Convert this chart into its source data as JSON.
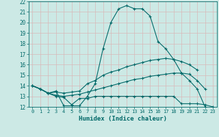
{
  "xlabel": "Humidex (Indice chaleur)",
  "background_color": "#cce9e5",
  "grid_color": "#b0d4d0",
  "line_color": "#006868",
  "xlim": [
    -0.5,
    23.5
  ],
  "ylim": [
    12,
    22
  ],
  "xticks": [
    0,
    1,
    2,
    3,
    4,
    5,
    6,
    7,
    8,
    9,
    10,
    11,
    12,
    13,
    14,
    15,
    16,
    17,
    18,
    19,
    20,
    21,
    22,
    23
  ],
  "yticks": [
    12,
    13,
    14,
    15,
    16,
    17,
    18,
    19,
    20,
    21,
    22
  ],
  "curves": [
    {
      "x": [
        0,
        1,
        2,
        3,
        4,
        5,
        6,
        7,
        8,
        9,
        10,
        11,
        12,
        13,
        14,
        15,
        16,
        17,
        18,
        19,
        20,
        21,
        22
      ],
      "y": [
        14,
        13.7,
        13.3,
        13.5,
        12.1,
        12.1,
        12.1,
        13.0,
        14.2,
        17.5,
        20.0,
        21.3,
        21.6,
        21.3,
        21.3,
        20.6,
        18.2,
        17.5,
        16.5,
        15.2,
        14.5,
        13.7,
        12.0
      ]
    },
    {
      "x": [
        0,
        1,
        2,
        3,
        4,
        5,
        6,
        7,
        8,
        9,
        10,
        11,
        12,
        13,
        14,
        15,
        16,
        17,
        18,
        19,
        20,
        21
      ],
      "y": [
        14,
        13.7,
        13.3,
        13.4,
        13.3,
        13.4,
        13.5,
        14.2,
        14.5,
        15.0,
        15.3,
        15.5,
        15.8,
        16.0,
        16.2,
        16.4,
        16.5,
        16.6,
        16.5,
        16.3,
        16.0,
        15.5
      ]
    },
    {
      "x": [
        0,
        1,
        2,
        3,
        4,
        5,
        6,
        7,
        8,
        9,
        10,
        11,
        12,
        13,
        14,
        15,
        16,
        17,
        18,
        19,
        20,
        21,
        22
      ],
      "y": [
        14,
        13.7,
        13.3,
        13.1,
        13.0,
        13.1,
        13.2,
        13.4,
        13.6,
        13.8,
        14.0,
        14.2,
        14.4,
        14.6,
        14.7,
        14.9,
        15.0,
        15.1,
        15.2,
        15.2,
        15.1,
        14.5,
        13.7
      ]
    },
    {
      "x": [
        0,
        1,
        2,
        3,
        4,
        5,
        6,
        7,
        8,
        9,
        10,
        11,
        12,
        13,
        14,
        15,
        16,
        17,
        18,
        19,
        20,
        21,
        22,
        23
      ],
      "y": [
        14,
        13.7,
        13.3,
        13.0,
        12.9,
        12.2,
        12.8,
        12.8,
        13.0,
        13.0,
        13.0,
        13.0,
        13.0,
        13.0,
        13.0,
        13.0,
        13.0,
        13.0,
        13.0,
        12.3,
        12.3,
        12.3,
        12.2,
        12.0
      ]
    }
  ]
}
